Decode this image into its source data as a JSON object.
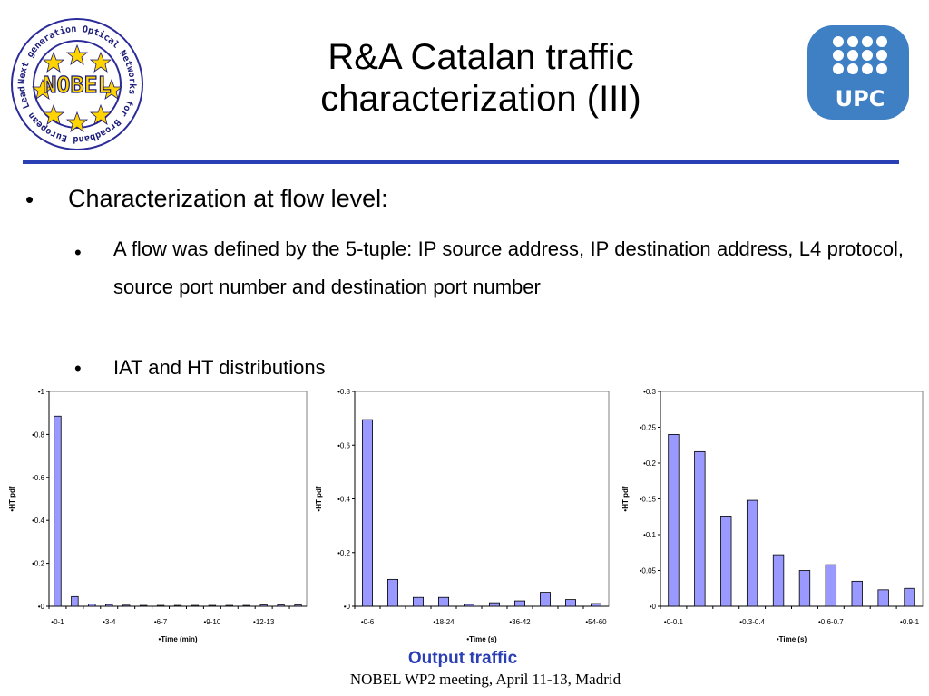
{
  "slide": {
    "title_line1": "R&A Catalan traffic",
    "title_line2": "characterization (III)",
    "bullet_char": "•",
    "bullets": [
      {
        "level": 1,
        "text": "Characterization at flow level:"
      },
      {
        "level": 2,
        "text": "A flow was defined by the 5-tuple: IP source address, IP destination address, L4 protocol, source port number and destination port number"
      },
      {
        "level": 2,
        "text": "IAT and HT distributions"
      }
    ],
    "caption": "Output traffic",
    "footer": "NOBEL WP2 meeting, April 11-13, Madrid",
    "logo_left_text": "NOBEL",
    "logo_left_ring": "Next generation Optical Networks for Broadband European Leadership",
    "logo_right_text": "UPC",
    "colors": {
      "accent": "#2b3fb5",
      "bar_fill": "#9999ff",
      "upc_blue": "#3f7fc4"
    }
  },
  "chart_data": [
    {
      "type": "bar",
      "categories": [
        "0-1",
        "1-2",
        "2-3",
        "3-4",
        "4-5",
        "5-6",
        "6-7",
        "7-8",
        "8-9",
        "9-10",
        "10-11",
        "11-12",
        "12-13",
        "13-14",
        "14-15"
      ],
      "tick_labels": [
        "•0-1",
        "",
        "",
        "•3-4",
        "",
        "",
        "•6-7",
        "",
        "",
        "•9-10",
        "",
        "",
        "•12-13",
        "",
        ""
      ],
      "values": [
        0.885,
        0.045,
        0.01,
        0.008,
        0.005,
        0.004,
        0.004,
        0.004,
        0.004,
        0.004,
        0.004,
        0.004,
        0.006,
        0.006,
        0.006
      ],
      "ylabel": "•HT pdf",
      "xlabel": "•Time (min)",
      "ylim": [
        0,
        1
      ],
      "yticks": [
        0,
        0.2,
        0.4,
        0.6,
        0.8,
        1
      ],
      "ytick_labels": [
        "•0",
        "•0.2",
        "•0.4",
        "•0.6",
        "•0.8",
        "•1"
      ],
      "grid": false
    },
    {
      "type": "bar",
      "categories": [
        "0-6",
        "6-12",
        "12-18",
        "18-24",
        "24-30",
        "30-36",
        "36-42",
        "42-48",
        "48-54",
        "54-60"
      ],
      "tick_labels": [
        "•0-6",
        "",
        "",
        "•18-24",
        "",
        "",
        "•36-42",
        "",
        "",
        "•54-60"
      ],
      "values": [
        0.695,
        0.1,
        0.033,
        0.033,
        0.007,
        0.013,
        0.02,
        0.052,
        0.025,
        0.01
      ],
      "ylabel": "•HT pdf",
      "xlabel": "•Time (s)",
      "ylim": [
        0,
        0.8
      ],
      "yticks": [
        0,
        0.2,
        0.4,
        0.6,
        0.8
      ],
      "ytick_labels": [
        "•0",
        "•0.2",
        "•0.4",
        "•0.6",
        "•0.8"
      ],
      "grid": false
    },
    {
      "type": "bar",
      "categories": [
        "0-0.1",
        "0.1-0.2",
        "0.2-0.3",
        "0.3-0.4",
        "0.4-0.5",
        "0.5-0.6",
        "0.6-0.7",
        "0.7-0.8",
        "0.8-0.9",
        "0.9-1"
      ],
      "tick_labels": [
        "•0-0.1",
        "",
        "",
        "•0.3-0.4",
        "",
        "",
        "•0.6-0.7",
        "",
        "",
        "•0.9-1"
      ],
      "values": [
        0.24,
        0.216,
        0.126,
        0.148,
        0.072,
        0.05,
        0.058,
        0.035,
        0.023,
        0.025
      ],
      "ylabel": "•HT pdf",
      "xlabel": "•Time (s)",
      "ylim": [
        0,
        0.3
      ],
      "yticks": [
        0,
        0.05,
        0.1,
        0.15,
        0.2,
        0.25,
        0.3
      ],
      "ytick_labels": [
        "•0",
        "•0.05",
        "•0.1",
        "•0.15",
        "•0.2",
        "•0.25",
        "•0.3"
      ],
      "grid": false
    }
  ]
}
